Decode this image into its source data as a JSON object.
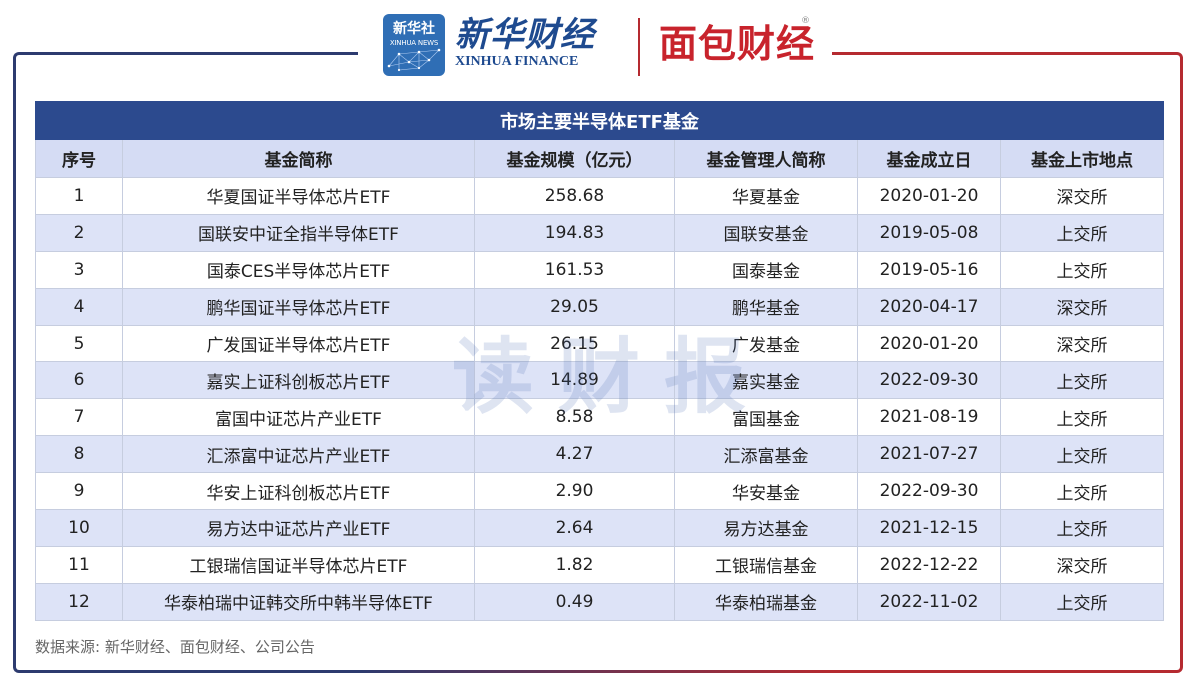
{
  "logos": {
    "xinhua_badge_cn": "新华社",
    "xinhua_badge_en": "XINHUA NEWS",
    "xinhua_finance_cn": "新华财经",
    "xinhua_finance_en": "XINHUA FINANCE",
    "mianbao_cn": "面包财经",
    "registered": "®"
  },
  "table": {
    "title": "市场主要半导体ETF基金",
    "headers": [
      "序号",
      "基金简称",
      "基金规模（亿元）",
      "基金管理人简称",
      "基金成立日",
      "基金上市地点"
    ],
    "rows": [
      [
        "1",
        "华夏国证半导体芯片ETF",
        "258.68",
        "华夏基金",
        "2020-01-20",
        "深交所"
      ],
      [
        "2",
        "国联安中证全指半导体ETF",
        "194.83",
        "国联安基金",
        "2019-05-08",
        "上交所"
      ],
      [
        "3",
        "国泰CES半导体芯片ETF",
        "161.53",
        "国泰基金",
        "2019-05-16",
        "上交所"
      ],
      [
        "4",
        "鹏华国证半导体芯片ETF",
        "29.05",
        "鹏华基金",
        "2020-04-17",
        "深交所"
      ],
      [
        "5",
        "广发国证半导体芯片ETF",
        "26.15",
        "广发基金",
        "2020-01-20",
        "深交所"
      ],
      [
        "6",
        "嘉实上证科创板芯片ETF",
        "14.89",
        "嘉实基金",
        "2022-09-30",
        "上交所"
      ],
      [
        "7",
        "富国中证芯片产业ETF",
        "8.58",
        "富国基金",
        "2021-08-19",
        "上交所"
      ],
      [
        "8",
        "汇添富中证芯片产业ETF",
        "4.27",
        "汇添富基金",
        "2021-07-27",
        "上交所"
      ],
      [
        "9",
        "华安上证科创板芯片ETF",
        "2.90",
        "华安基金",
        "2022-09-30",
        "上交所"
      ],
      [
        "10",
        "易方达中证芯片产业ETF",
        "2.64",
        "易方达基金",
        "2021-12-15",
        "上交所"
      ],
      [
        "11",
        "工银瑞信国证半导体芯片ETF",
        "1.82",
        "工银瑞信基金",
        "2022-12-22",
        "深交所"
      ],
      [
        "12",
        "华泰柏瑞中证韩交所中韩半导体ETF",
        "0.49",
        "华泰柏瑞基金",
        "2022-11-02",
        "上交所"
      ]
    ]
  },
  "watermark": "读财报",
  "source": "数据来源: 新华财经、面包财经、公司公告",
  "colors": {
    "title_bg": "#2c4a8e",
    "header_bg": "#d5dcf4",
    "stripe_bg": "#dde3f7",
    "frame_blue": "#2d3b6f",
    "frame_red": "#b52a30"
  }
}
